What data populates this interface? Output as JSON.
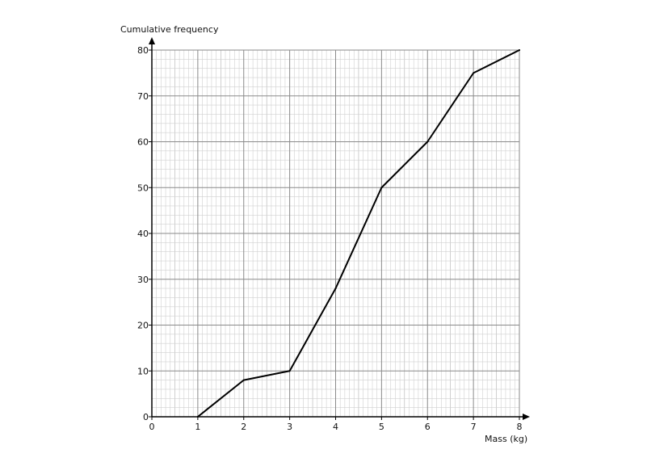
{
  "chart_data": {
    "type": "line",
    "title": "",
    "xlabel": "Mass (kg)",
    "ylabel": "Cumulative frequency",
    "xlim": [
      0,
      8
    ],
    "ylim": [
      0,
      80
    ],
    "x_ticks": [
      "0",
      "1",
      "2",
      "3",
      "4",
      "5",
      "6",
      "7",
      "8"
    ],
    "y_ticks": [
      "0",
      "10",
      "20",
      "30",
      "40",
      "50",
      "60",
      "70",
      "80"
    ],
    "grid": true,
    "series": [
      {
        "x": [
          1,
          2,
          3,
          4,
          5,
          6,
          7,
          8
        ],
        "y": [
          0,
          8,
          10,
          28,
          50,
          60,
          75,
          80
        ]
      }
    ]
  }
}
